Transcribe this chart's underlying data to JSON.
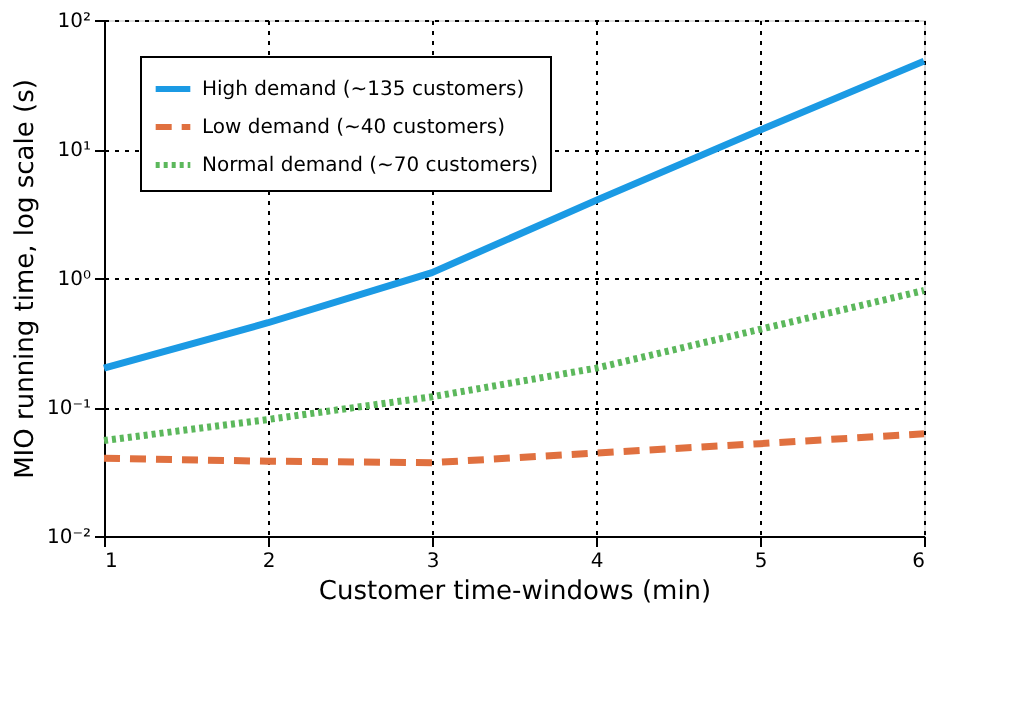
{
  "chart_data": {
    "type": "line",
    "xlabel": "Customer time-windows (min)",
    "ylabel": "MIO running time, log scale (s)",
    "x": [
      1,
      2,
      3,
      4,
      5,
      6
    ],
    "series": [
      {
        "name": "High demand (~135 customers)",
        "color": "#1b9ae4",
        "line_style": "solid",
        "values": [
          0.2,
          0.45,
          1.1,
          4,
          14,
          48
        ]
      },
      {
        "name": "Low demand (~40 customers)",
        "color": "#e0703f",
        "line_style": "dashed",
        "values": [
          0.04,
          0.038,
          0.037,
          0.044,
          0.052,
          0.062
        ]
      },
      {
        "name": "Normal demand (~70 customers)",
        "color": "#5cb85c",
        "line_style": "dotted",
        "values": [
          0.055,
          0.08,
          0.12,
          0.2,
          0.4,
          0.8
        ]
      }
    ],
    "log": "y",
    "xlim": [
      1,
      6
    ],
    "xticks": [
      1,
      2,
      3,
      4,
      5,
      6
    ],
    "ylim": [
      0.01,
      100
    ],
    "yticks": [
      {
        "value": 0.01,
        "label": "10⁻²"
      },
      {
        "value": 0.1,
        "label": "10⁻¹"
      },
      {
        "value": 1,
        "label": "10⁰"
      },
      {
        "value": 10,
        "label": "10¹"
      },
      {
        "value": 100,
        "label": "10²"
      }
    ],
    "grid": true,
    "legend": "top left",
    "marker": "none"
  }
}
